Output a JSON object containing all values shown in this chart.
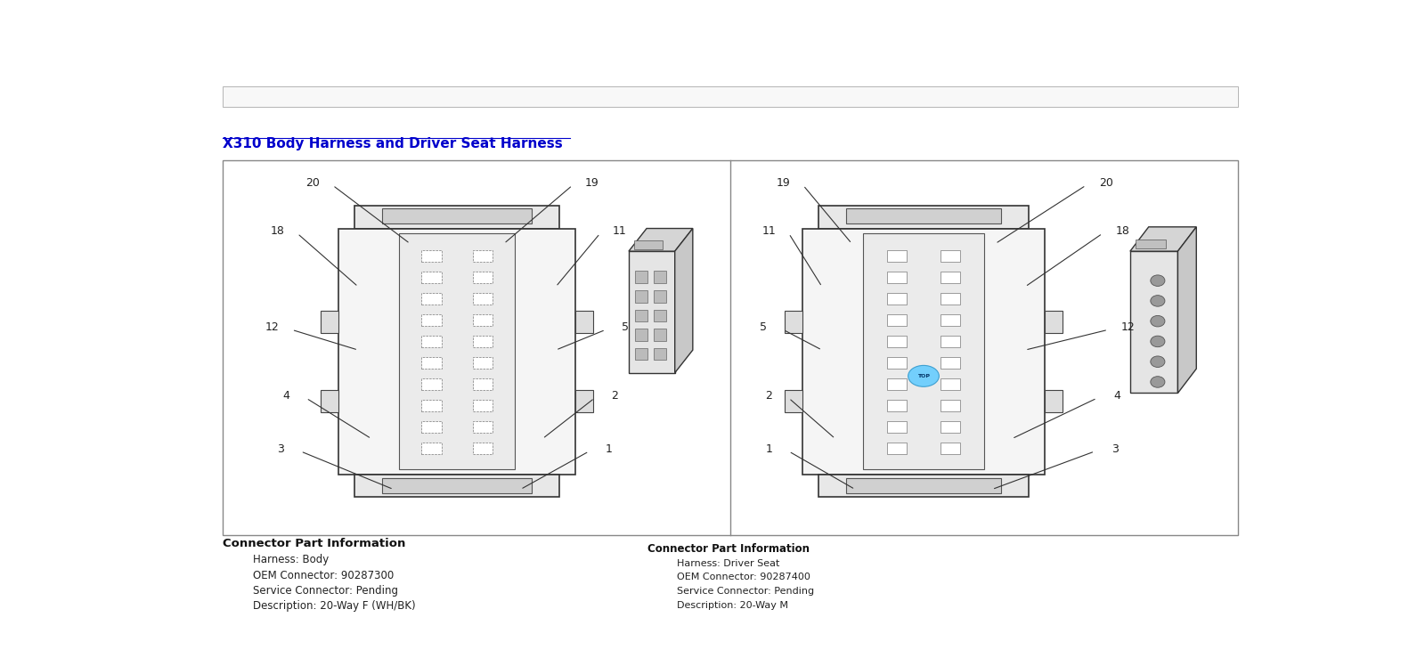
{
  "title": "X310 Body Harness and Driver Seat Harness",
  "title_color": "#0000CC",
  "bg_color": "#FFFFFF",
  "box_border_color": "#888888",
  "connector_info_left_title": "Connector Part Information",
  "connector_info_left": [
    "Harness: Body",
    "OEM Connector: 90287300",
    "Service Connector: Pending",
    "Description: 20-Way F (WH/BK)"
  ],
  "connector_info_right_title": "Connector Part Information",
  "connector_info_right": [
    "Harness: Driver Seat",
    "OEM Connector: 90287400",
    "Service Connector: Pending",
    "Description: 20-Way M"
  ],
  "highlight_color": "#66CCFF"
}
